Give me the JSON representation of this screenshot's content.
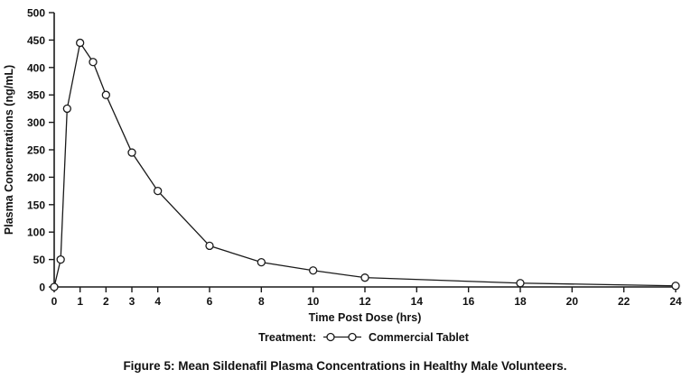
{
  "figure": {
    "caption": "Figure 5: Mean Sildenafil Plasma Concentrations in Healthy Male Volunteers.",
    "legend_prefix": "Treatment:",
    "legend_label": "Commercial Tablet"
  },
  "colors": {
    "line": "#1a1a1a",
    "marker_fill": "#ffffff",
    "axis": "#1a1a1a",
    "background": "#ffffff"
  },
  "chart_data": {
    "type": "line",
    "title": "",
    "xlabel": "Time Post Dose (hrs)",
    "ylabel": "Plasma Concentrations (ng/mL)",
    "xlim": [
      0,
      24
    ],
    "ylim": [
      0,
      500
    ],
    "x_ticks": [
      0,
      1,
      2,
      3,
      4,
      6,
      8,
      10,
      12,
      14,
      16,
      18,
      20,
      22,
      24
    ],
    "y_ticks": [
      0,
      50,
      100,
      150,
      200,
      250,
      300,
      350,
      400,
      450,
      500
    ],
    "grid": false,
    "legend_position": "bottom",
    "series": [
      {
        "name": "Commercial Tablet",
        "marker": "open-circle",
        "x": [
          0,
          0.25,
          0.5,
          1,
          1.5,
          2,
          3,
          4,
          6,
          8,
          10,
          12,
          18,
          24
        ],
        "y": [
          0,
          50,
          325,
          445,
          410,
          350,
          245,
          175,
          75,
          45,
          30,
          17,
          7,
          2
        ]
      }
    ]
  }
}
